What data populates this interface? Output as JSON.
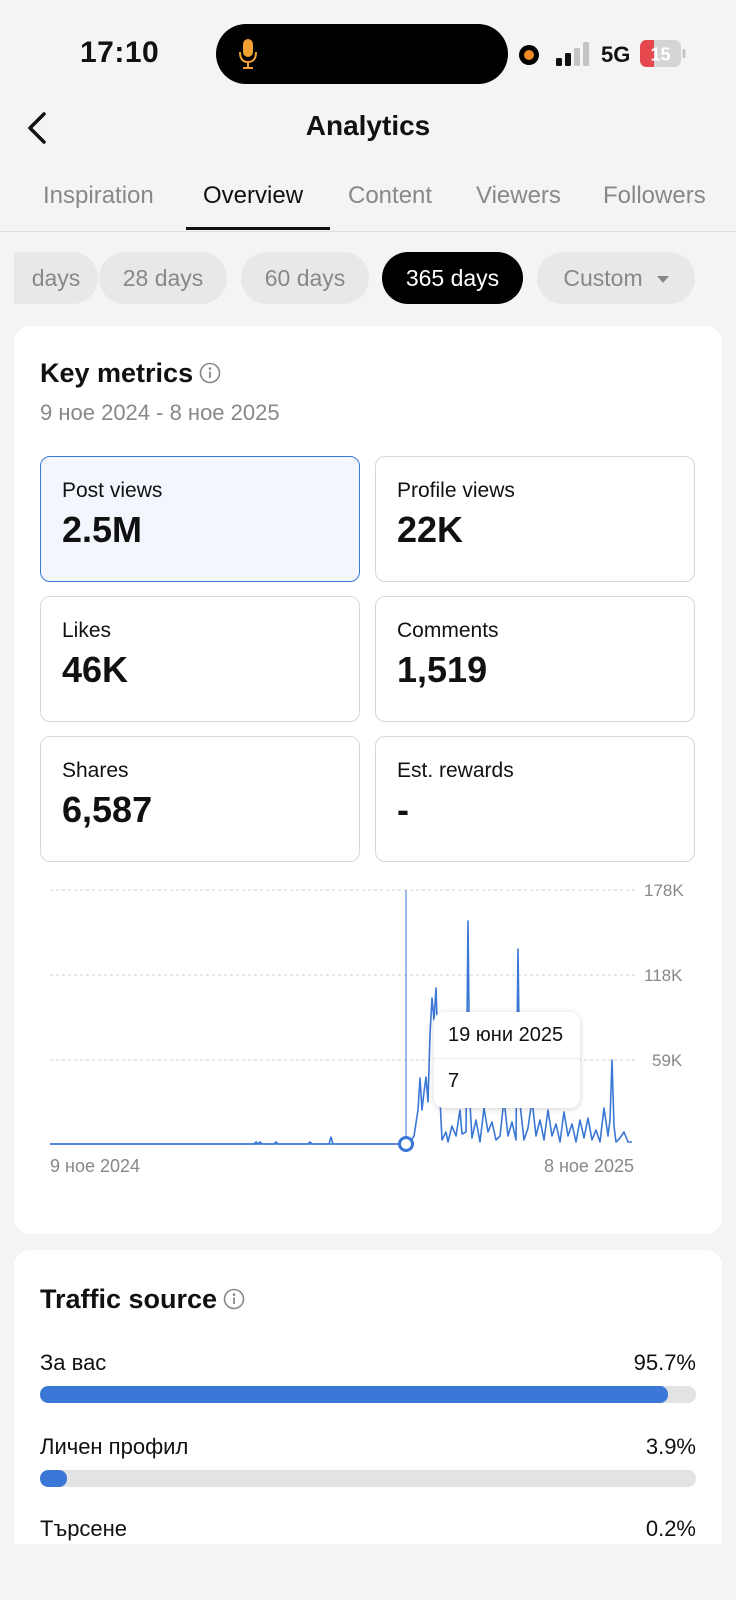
{
  "status": {
    "time": "17:10",
    "network": "5G",
    "battery": "15"
  },
  "header": {
    "title": "Analytics"
  },
  "tabs": [
    {
      "label": "Inspiration"
    },
    {
      "label": "Overview"
    },
    {
      "label": "Content"
    },
    {
      "label": "Viewers"
    },
    {
      "label": "Followers"
    }
  ],
  "ranges": [
    {
      "label": "days"
    },
    {
      "label": "28 days"
    },
    {
      "label": "60 days"
    },
    {
      "label": "365 days"
    },
    {
      "label": "Custom"
    }
  ],
  "key_metrics": {
    "title": "Key metrics",
    "date_range": "9 ное 2024 - 8 ное 2025",
    "items": [
      {
        "label": "Post views",
        "value": "2.5M"
      },
      {
        "label": "Profile views",
        "value": "22K"
      },
      {
        "label": "Likes",
        "value": "46K"
      },
      {
        "label": "Comments",
        "value": "1,519"
      },
      {
        "label": "Shares",
        "value": "6,587"
      },
      {
        "label": "Est. rewards",
        "value": "-"
      }
    ]
  },
  "chart_data": {
    "type": "line",
    "title": "Post views",
    "y_ticks": [
      "178K",
      "118K",
      "59K"
    ],
    "ylim": [
      0,
      178000
    ],
    "x_start_label": "9 ное 2024",
    "x_end_label": "8 ное 2025",
    "tooltip": {
      "date": "19 юни 2025",
      "value": "7"
    }
  },
  "traffic": {
    "title": "Traffic source",
    "items": [
      {
        "name": "За вас",
        "pct": "95.7%",
        "value": 95.7
      },
      {
        "name": "Личен профил",
        "pct": "3.9%",
        "value": 3.9
      },
      {
        "name": "Търсене",
        "pct": "0.2%",
        "value": 0.2
      }
    ]
  },
  "colors": {
    "accent": "#3b77d6"
  }
}
